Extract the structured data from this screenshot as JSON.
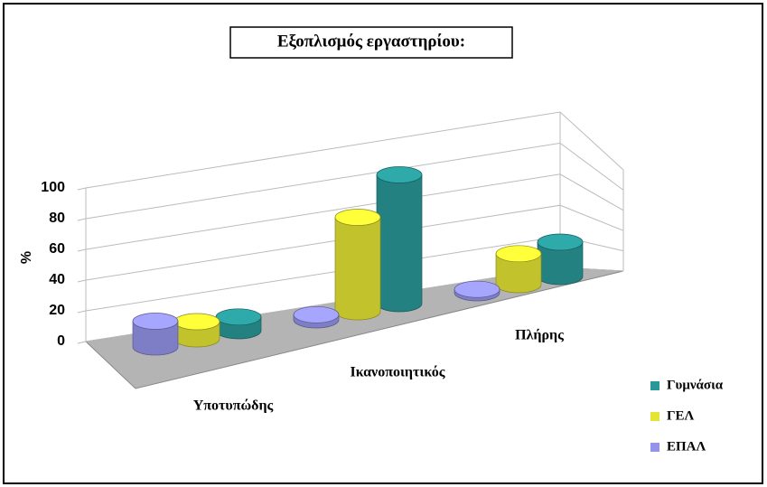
{
  "chart_data": {
    "type": "bar3d",
    "title": "Εξοπλισμός εργαστηρίου:",
    "y_label": "%",
    "categories": [
      "Υποτυπώδης",
      "Ικανοποιητικός",
      "Πλήρης"
    ],
    "series": [
      {
        "name": "Γυμνάσια",
        "color": "#2a9898",
        "values": [
          8,
          75,
          20
        ]
      },
      {
        "name": "ΓΕΛ",
        "color": "#e4e434",
        "values": [
          10,
          55,
          18
        ]
      },
      {
        "name": "ΕΠΑΛ",
        "color": "#9494ea",
        "values": [
          15,
          3,
          2
        ]
      }
    ],
    "ylim": [
      0,
      100
    ],
    "yticks": [
      0,
      20,
      40,
      60,
      80,
      100
    ],
    "grid": true,
    "legend": "right"
  }
}
